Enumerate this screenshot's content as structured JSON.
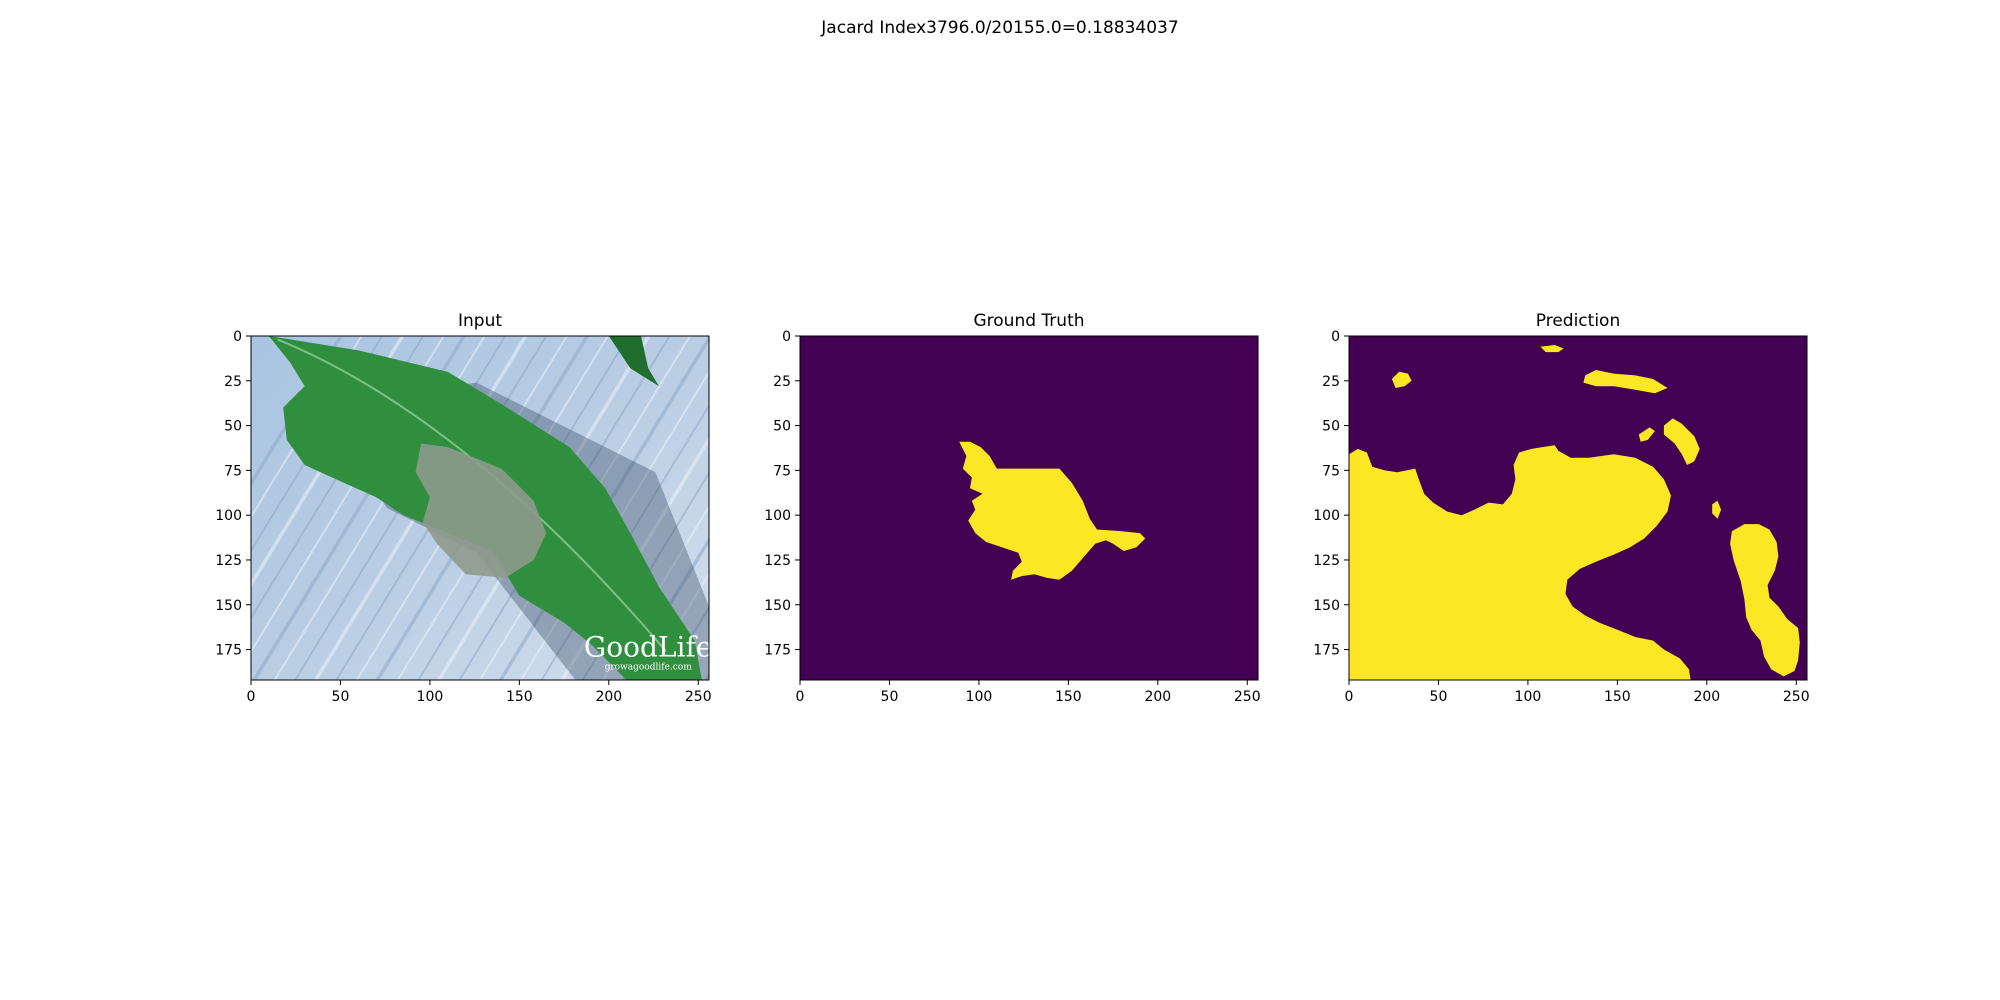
{
  "figure": {
    "suptitle": "Jacard Index3796.0/20155.0=0.18834037"
  },
  "chart_data": [
    {
      "type": "image",
      "title": "Input",
      "x_ticks": [
        0,
        50,
        100,
        150,
        200,
        250
      ],
      "y_ticks": [
        0,
        25,
        50,
        75,
        100,
        125,
        150,
        175
      ],
      "xlim": [
        0,
        256
      ],
      "ylim": [
        192,
        0
      ],
      "content": "photo of a green tomato leaf with a grey lesion on a light blue wooden surface",
      "watermark": {
        "line1": "GoodLife",
        "line2": "growagoodlife.com"
      },
      "colors": {
        "leaf": "#2f8f3f",
        "leaf_dark": "#1f6e2d",
        "lesion": "#8e9a8c",
        "background": "#b9cde3"
      }
    },
    {
      "type": "heatmap",
      "title": "Ground Truth",
      "x_ticks": [
        0,
        50,
        100,
        150,
        200,
        250
      ],
      "y_ticks": [
        0,
        25,
        50,
        75,
        100,
        125,
        150,
        175
      ],
      "xlim": [
        0,
        256
      ],
      "ylim": [
        192,
        0
      ],
      "colormap": {
        "background": "#440154",
        "foreground": "#fde725"
      },
      "mask_regions": [
        {
          "polygon": [
            [
              89,
              59
            ],
            [
              95,
              59
            ],
            [
              101,
              62
            ],
            [
              106,
              67
            ],
            [
              110,
              74
            ],
            [
              145,
              74
            ],
            [
              152,
              82
            ],
            [
              158,
              92
            ],
            [
              162,
              102
            ],
            [
              166,
              108
            ],
            [
              180,
              109
            ],
            [
              190,
              110
            ],
            [
              193,
              113
            ],
            [
              188,
              118
            ],
            [
              181,
              120
            ],
            [
              175,
              116
            ],
            [
              171,
              114
            ],
            [
              165,
              116
            ],
            [
              158,
              124
            ],
            [
              152,
              131
            ],
            [
              145,
              136
            ],
            [
              138,
              135
            ],
            [
              131,
              133
            ],
            [
              124,
              134
            ],
            [
              118,
              136
            ],
            [
              119,
              131
            ],
            [
              124,
              126
            ],
            [
              122,
              121
            ],
            [
              113,
              118
            ],
            [
              104,
              115
            ],
            [
              98,
              110
            ],
            [
              94,
              103
            ],
            [
              98,
              97
            ],
            [
              96,
              92
            ],
            [
              102,
              88
            ],
            [
              95,
              85
            ],
            [
              96,
              79
            ],
            [
              91,
              74
            ],
            [
              93,
              67
            ]
          ]
        }
      ]
    },
    {
      "type": "heatmap",
      "title": "Prediction",
      "x_ticks": [
        0,
        50,
        100,
        150,
        200,
        250
      ],
      "y_ticks": [
        0,
        25,
        50,
        75,
        100,
        125,
        150,
        175
      ],
      "xlim": [
        0,
        256
      ],
      "ylim": [
        192,
        0
      ],
      "colormap": {
        "background": "#440154",
        "foreground": "#fde725"
      },
      "mask_regions": [
        {
          "polygon": [
            [
              0,
              66
            ],
            [
              5,
              63
            ],
            [
              10,
              65
            ],
            [
              13,
              73
            ],
            [
              20,
              75
            ],
            [
              27,
              76
            ],
            [
              37,
              74
            ],
            [
              39,
              80
            ],
            [
              42,
              88
            ],
            [
              47,
              93
            ],
            [
              55,
              98
            ],
            [
              63,
              100
            ],
            [
              70,
              97
            ],
            [
              78,
              93
            ],
            [
              86,
              94
            ],
            [
              91,
              88
            ],
            [
              93,
              80
            ],
            [
              92,
              72
            ],
            [
              95,
              65
            ],
            [
              102,
              63
            ],
            [
              108,
              62
            ],
            [
              115,
              61
            ],
            [
              117,
              64
            ],
            [
              124,
              68
            ],
            [
              134,
              68
            ],
            [
              148,
              66
            ],
            [
              160,
              68
            ],
            [
              170,
              73
            ],
            [
              176,
              80
            ],
            [
              180,
              89
            ],
            [
              178,
              98
            ],
            [
              172,
              106
            ],
            [
              165,
              113
            ],
            [
              157,
              118
            ],
            [
              148,
              122
            ],
            [
              138,
              126
            ],
            [
              129,
              130
            ],
            [
              122,
              136
            ],
            [
              121,
              144
            ],
            [
              125,
              151
            ],
            [
              132,
              156
            ],
            [
              140,
              160
            ],
            [
              150,
              164
            ],
            [
              160,
              168
            ],
            [
              170,
              170
            ],
            [
              176,
              175
            ],
            [
              185,
              180
            ],
            [
              190,
              186
            ],
            [
              191,
              192
            ],
            [
              0,
              192
            ]
          ]
        },
        {
          "polygon": [
            [
              107,
              6
            ],
            [
              115,
              5
            ],
            [
              120,
              7
            ],
            [
              117,
              9
            ],
            [
              110,
              9
            ]
          ]
        },
        {
          "polygon": [
            [
              24,
              24
            ],
            [
              28,
              20
            ],
            [
              33,
              21
            ],
            [
              35,
              25
            ],
            [
              31,
              28
            ],
            [
              26,
              29
            ]
          ]
        },
        {
          "polygon": [
            [
              132,
              22
            ],
            [
              138,
              19
            ],
            [
              148,
              21
            ],
            [
              160,
              22
            ],
            [
              170,
              24
            ],
            [
              178,
              29
            ],
            [
              171,
              32
            ],
            [
              160,
              30
            ],
            [
              148,
              28
            ],
            [
              138,
              28
            ],
            [
              131,
              26
            ]
          ]
        },
        {
          "polygon": [
            [
              176,
              50
            ],
            [
              181,
              46
            ],
            [
              186,
              49
            ],
            [
              193,
              56
            ],
            [
              196,
              63
            ],
            [
              193,
              70
            ],
            [
              189,
              72
            ],
            [
              186,
              66
            ],
            [
              182,
              60
            ],
            [
              176,
              55
            ]
          ]
        },
        {
          "polygon": [
            [
              162,
              55
            ],
            [
              168,
              51
            ],
            [
              171,
              53
            ],
            [
              167,
              58
            ],
            [
              163,
              59
            ]
          ]
        },
        {
          "polygon": [
            [
              203,
              94
            ],
            [
              206,
              92
            ],
            [
              208,
              97
            ],
            [
              206,
              102
            ],
            [
              203,
              99
            ]
          ]
        },
        {
          "polygon": [
            [
              214,
              109
            ],
            [
              221,
              105
            ],
            [
              229,
              105
            ],
            [
              235,
              108
            ],
            [
              239,
              115
            ],
            [
              240,
              123
            ],
            [
              238,
              131
            ],
            [
              234,
              139
            ],
            [
              235,
              146
            ],
            [
              240,
              151
            ],
            [
              245,
              158
            ],
            [
              251,
              163
            ],
            [
              252,
              171
            ],
            [
              251,
              181
            ],
            [
              249,
              187
            ],
            [
              243,
              190
            ],
            [
              236,
              186
            ],
            [
              232,
              179
            ],
            [
              230,
              170
            ],
            [
              225,
              164
            ],
            [
              222,
              157
            ],
            [
              221,
              147
            ],
            [
              219,
              137
            ],
            [
              215,
              125
            ],
            [
              213,
              116
            ]
          ]
        }
      ]
    }
  ]
}
